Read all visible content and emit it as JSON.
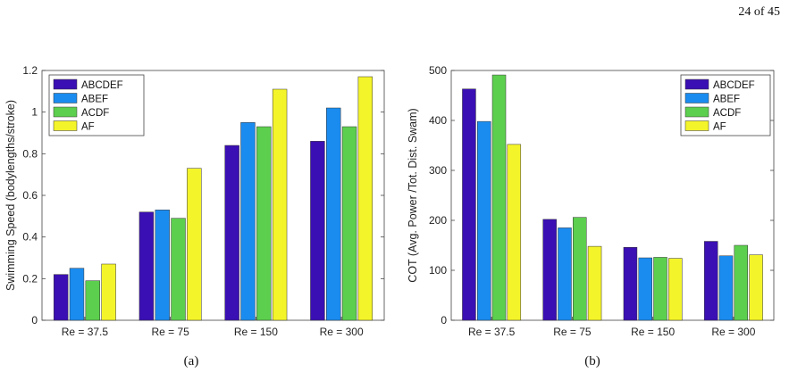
{
  "page_number": "24 of 45",
  "chart_data": [
    {
      "type": "bar",
      "caption": "(a)",
      "ylabel": "Swimming Speed (bodylengths/stroke)",
      "xlabel": "",
      "categories": [
        "Re = 37.5",
        "Re = 75",
        "Re = 150",
        "Re = 300"
      ],
      "ylim": [
        0,
        1.2
      ],
      "yticks": [
        0,
        0.2,
        0.4,
        0.6,
        0.8,
        1,
        1.2
      ],
      "ytick_labels": [
        "0",
        "0.2",
        "0.4",
        "0.6",
        "0.8",
        "1",
        "1.2"
      ],
      "legend_position": "top-left",
      "grid": false,
      "series": [
        {
          "name": "ABCDEF",
          "color": "#3a0fb3",
          "values": [
            0.22,
            0.25,
            0.19,
            0.27
          ]
        },
        {
          "name": "ABEF",
          "color": "#1a8cf0",
          "values": [
            0.52,
            0.53,
            0.49,
            0.73
          ]
        },
        {
          "name": "ACDF",
          "color": "#5ccf4e",
          "values": [
            0.84,
            0.95,
            0.93,
            1.11
          ]
        },
        {
          "name": "AF",
          "color": "#f4f42a",
          "values": [
            0.86,
            1.02,
            0.93,
            1.17
          ]
        }
      ],
      "bar_grouping": "series_per_category_index"
    },
    {
      "type": "bar",
      "caption": "(b)",
      "ylabel": "COT (Avg. Power /Tot. Dist. Swam)",
      "xlabel": "",
      "categories": [
        "Re = 37.5",
        "Re = 75",
        "Re = 150",
        "Re = 300"
      ],
      "ylim": [
        0,
        500
      ],
      "yticks": [
        0,
        100,
        200,
        300,
        400,
        500
      ],
      "ytick_labels": [
        "0",
        "100",
        "200",
        "300",
        "400",
        "500"
      ],
      "legend_position": "top-right",
      "grid": false,
      "series": [
        {
          "name": "ABCDEF",
          "color": "#3a0fb3",
          "values": [
            463,
            398,
            491,
            352
          ]
        },
        {
          "name": "ABEF",
          "color": "#1a8cf0",
          "values": [
            202,
            185,
            206,
            148
          ]
        },
        {
          "name": "ACDF",
          "color": "#5ccf4e",
          "values": [
            146,
            125,
            126,
            124
          ]
        },
        {
          "name": "AF",
          "color": "#f4f42a",
          "values": [
            158,
            129,
            150,
            131
          ]
        }
      ],
      "bar_grouping": "series_per_category_index"
    }
  ]
}
